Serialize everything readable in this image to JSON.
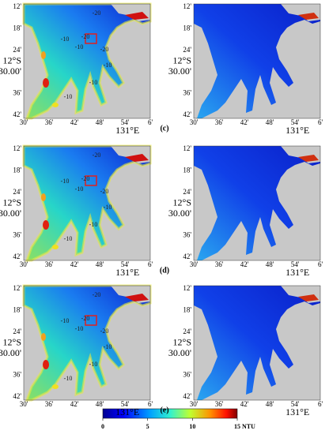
{
  "panels": [
    {
      "label": "(c)"
    },
    {
      "label": "(d)"
    },
    {
      "label": "(e)"
    }
  ],
  "map_axes": {
    "y_labels": [
      "12'",
      "18'",
      "24'",
      "30.00'",
      "36'",
      "42'"
    ],
    "lat_label": "12°S",
    "x_labels": [
      "30'",
      "36'",
      "42'",
      "48'",
      "54'",
      "6'"
    ],
    "lon_label": "131°E"
  },
  "contour_labels": [
    "-20",
    "-10",
    "-20",
    "-10",
    "-20",
    "-10",
    "-10",
    "-10"
  ],
  "colorbar": {
    "ticks": [
      0,
      5,
      10,
      {
        "value": 15,
        "label": "15 NTU"
      }
    ]
  }
}
